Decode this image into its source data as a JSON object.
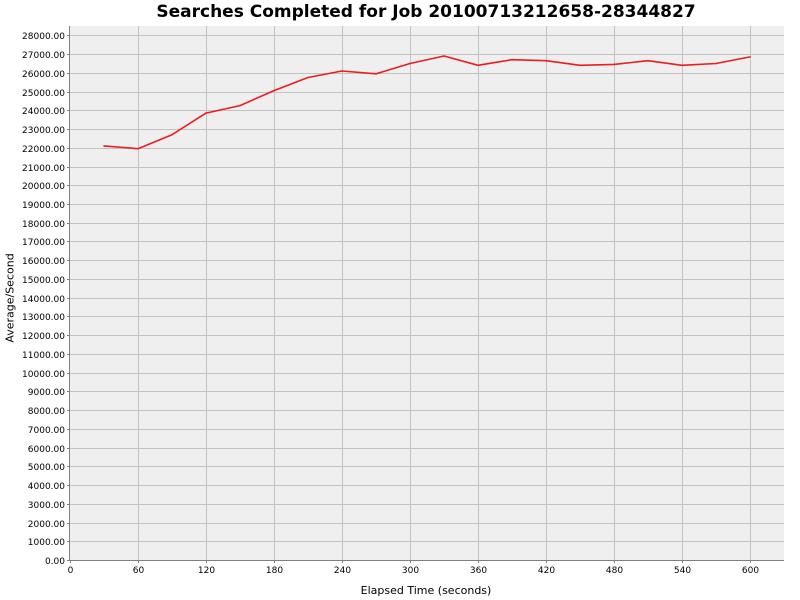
{
  "chart_data": {
    "type": "line",
    "title": "Searches Completed for Job 20100713212658-28344827",
    "xlabel": "Elapsed Time (seconds)",
    "ylabel": "Average/Second",
    "xlim": [
      0,
      630
    ],
    "ylim": [
      0,
      28500
    ],
    "x_ticks": [
      0,
      60,
      120,
      180,
      240,
      300,
      360,
      420,
      480,
      540,
      600
    ],
    "x_tick_labels": [
      "0",
      "60",
      "120",
      "180",
      "240",
      "300",
      "360",
      "420",
      "480",
      "540",
      "600"
    ],
    "y_ticks": [
      0,
      1000,
      2000,
      3000,
      4000,
      5000,
      6000,
      7000,
      8000,
      9000,
      10000,
      11000,
      12000,
      13000,
      14000,
      15000,
      16000,
      17000,
      18000,
      19000,
      20000,
      21000,
      22000,
      23000,
      24000,
      25000,
      26000,
      27000,
      28000
    ],
    "y_tick_labels": [
      "0.00",
      "1000.00",
      "2000.00",
      "3000.00",
      "4000.00",
      "5000.00",
      "6000.00",
      "7000.00",
      "8000.00",
      "9000.00",
      "10000.00",
      "11000.00",
      "12000.00",
      "13000.00",
      "14000.00",
      "15000.00",
      "16000.00",
      "17000.00",
      "18000.00",
      "19000.00",
      "20000.00",
      "21000.00",
      "22000.00",
      "23000.00",
      "24000.00",
      "25000.00",
      "26000.00",
      "27000.00",
      "28000.00"
    ],
    "grid": true,
    "legend": "none",
    "series": [
      {
        "color": "#ee1c1c",
        "x": [
          30,
          60,
          90,
          120,
          150,
          180,
          210,
          240,
          270,
          300,
          330,
          360,
          390,
          420,
          450,
          480,
          510,
          540,
          570,
          600
        ],
        "y": [
          22100,
          21950,
          22700,
          23850,
          24250,
          25050,
          25750,
          26100,
          25950,
          26500,
          26900,
          26400,
          26700,
          26650,
          26400,
          26450,
          26650,
          26400,
          26500,
          26850
        ]
      }
    ],
    "colors": {
      "plot_bg": "#efefef",
      "grid": "#c2c2c2",
      "axis": "#808080"
    }
  }
}
